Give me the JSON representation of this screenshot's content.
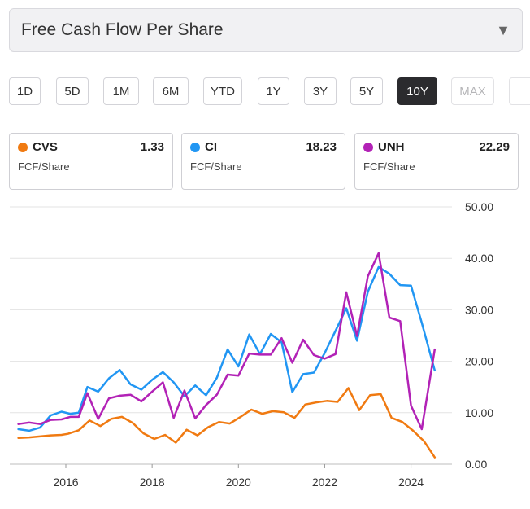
{
  "metric_selector": {
    "label": "Free Cash Flow Per Share",
    "caret": "▼"
  },
  "time_ranges": [
    {
      "label": "1D",
      "state": "normal"
    },
    {
      "label": "5D",
      "state": "normal"
    },
    {
      "label": "1M",
      "state": "normal"
    },
    {
      "label": "6M",
      "state": "normal"
    },
    {
      "label": "YTD",
      "state": "normal"
    },
    {
      "label": "1Y",
      "state": "normal"
    },
    {
      "label": "3Y",
      "state": "normal"
    },
    {
      "label": "5Y",
      "state": "normal"
    },
    {
      "label": "10Y",
      "state": "active"
    },
    {
      "label": "MAX",
      "state": "disabled"
    }
  ],
  "cards": [
    {
      "ticker": "CVS",
      "value": "1.33",
      "sub": "FCF/Share",
      "color": "#f07a11"
    },
    {
      "ticker": "CI",
      "value": "18.23",
      "sub": "FCF/Share",
      "color": "#2196f3"
    },
    {
      "ticker": "UNH",
      "value": "22.29",
      "sub": "FCF/Share",
      "color": "#b222b6"
    }
  ],
  "chart_data": {
    "type": "line",
    "xlim": [
      2014.7,
      2024.95
    ],
    "ylim": [
      0,
      50
    ],
    "x_ticks": [
      "2016",
      "2018",
      "2020",
      "2022",
      "2024"
    ],
    "y_ticks": [
      "0.00",
      "10.00",
      "20.00",
      "30.00",
      "40.00",
      "50.00"
    ],
    "grid": "horizontal",
    "y_axis_position": "right",
    "series": [
      {
        "name": "CVS",
        "color": "#f07a11",
        "points": [
          [
            2014.9,
            5.1
          ],
          [
            2015.15,
            5.2
          ],
          [
            2015.4,
            5.4
          ],
          [
            2015.65,
            5.6
          ],
          [
            2015.9,
            5.7
          ],
          [
            2016.05,
            5.9
          ],
          [
            2016.3,
            6.6
          ],
          [
            2016.55,
            8.5
          ],
          [
            2016.8,
            7.4
          ],
          [
            2017.05,
            8.8
          ],
          [
            2017.3,
            9.2
          ],
          [
            2017.55,
            8.0
          ],
          [
            2017.8,
            6.0
          ],
          [
            2018.05,
            4.9
          ],
          [
            2018.3,
            5.7
          ],
          [
            2018.55,
            4.2
          ],
          [
            2018.8,
            6.7
          ],
          [
            2019.05,
            5.6
          ],
          [
            2019.3,
            7.2
          ],
          [
            2019.55,
            8.2
          ],
          [
            2019.8,
            7.9
          ],
          [
            2020.05,
            9.2
          ],
          [
            2020.3,
            10.6
          ],
          [
            2020.55,
            9.8
          ],
          [
            2020.8,
            10.3
          ],
          [
            2021.05,
            10.1
          ],
          [
            2021.3,
            9.0
          ],
          [
            2021.55,
            11.6
          ],
          [
            2021.8,
            12.0
          ],
          [
            2022.05,
            12.3
          ],
          [
            2022.3,
            12.1
          ],
          [
            2022.55,
            14.8
          ],
          [
            2022.8,
            10.5
          ],
          [
            2023.05,
            13.4
          ],
          [
            2023.3,
            13.6
          ],
          [
            2023.55,
            9.0
          ],
          [
            2023.8,
            8.2
          ],
          [
            2024.05,
            6.5
          ],
          [
            2024.3,
            4.5
          ],
          [
            2024.55,
            1.33
          ]
        ]
      },
      {
        "name": "CI",
        "color": "#2196f3",
        "points": [
          [
            2014.9,
            6.8
          ],
          [
            2015.15,
            6.5
          ],
          [
            2015.4,
            7.1
          ],
          [
            2015.65,
            9.5
          ],
          [
            2015.9,
            10.2
          ],
          [
            2016.1,
            9.8
          ],
          [
            2016.3,
            10.0
          ],
          [
            2016.5,
            15.0
          ],
          [
            2016.75,
            14.1
          ],
          [
            2017.0,
            16.7
          ],
          [
            2017.25,
            18.3
          ],
          [
            2017.5,
            15.5
          ],
          [
            2017.75,
            14.5
          ],
          [
            2018.0,
            16.4
          ],
          [
            2018.25,
            17.9
          ],
          [
            2018.5,
            15.9
          ],
          [
            2018.75,
            13.2
          ],
          [
            2019.0,
            15.3
          ],
          [
            2019.25,
            13.4
          ],
          [
            2019.5,
            16.8
          ],
          [
            2019.75,
            22.3
          ],
          [
            2020.0,
            19.0
          ],
          [
            2020.25,
            25.2
          ],
          [
            2020.5,
            21.4
          ],
          [
            2020.75,
            25.3
          ],
          [
            2021.0,
            23.7
          ],
          [
            2021.25,
            14.0
          ],
          [
            2021.5,
            17.5
          ],
          [
            2021.75,
            17.8
          ],
          [
            2022.0,
            21.6
          ],
          [
            2022.25,
            25.9
          ],
          [
            2022.5,
            30.3
          ],
          [
            2022.75,
            24.0
          ],
          [
            2023.0,
            33.5
          ],
          [
            2023.25,
            38.3
          ],
          [
            2023.5,
            37.0
          ],
          [
            2023.75,
            34.8
          ],
          [
            2024.0,
            34.7
          ],
          [
            2024.25,
            27.5
          ],
          [
            2024.55,
            18.23
          ]
        ]
      },
      {
        "name": "UNH",
        "color": "#b222b6",
        "points": [
          [
            2014.9,
            7.8
          ],
          [
            2015.15,
            8.1
          ],
          [
            2015.4,
            7.8
          ],
          [
            2015.65,
            8.6
          ],
          [
            2015.9,
            8.7
          ],
          [
            2016.1,
            9.2
          ],
          [
            2016.3,
            9.2
          ],
          [
            2016.5,
            13.8
          ],
          [
            2016.75,
            8.8
          ],
          [
            2017.0,
            12.8
          ],
          [
            2017.25,
            13.3
          ],
          [
            2017.5,
            13.5
          ],
          [
            2017.75,
            12.2
          ],
          [
            2018.0,
            14.1
          ],
          [
            2018.25,
            15.9
          ],
          [
            2018.5,
            9.0
          ],
          [
            2018.75,
            14.3
          ],
          [
            2019.0,
            8.9
          ],
          [
            2019.25,
            11.5
          ],
          [
            2019.5,
            13.5
          ],
          [
            2019.75,
            17.4
          ],
          [
            2020.0,
            17.2
          ],
          [
            2020.25,
            21.5
          ],
          [
            2020.5,
            21.3
          ],
          [
            2020.75,
            21.3
          ],
          [
            2021.0,
            24.5
          ],
          [
            2021.25,
            19.7
          ],
          [
            2021.5,
            24.2
          ],
          [
            2021.75,
            21.2
          ],
          [
            2022.0,
            20.5
          ],
          [
            2022.25,
            21.4
          ],
          [
            2022.5,
            33.4
          ],
          [
            2022.75,
            24.9
          ],
          [
            2023.0,
            36.5
          ],
          [
            2023.25,
            41.0
          ],
          [
            2023.5,
            28.5
          ],
          [
            2023.75,
            27.8
          ],
          [
            2024.0,
            11.4
          ],
          [
            2024.25,
            6.8
          ],
          [
            2024.55,
            22.29
          ]
        ]
      }
    ]
  }
}
